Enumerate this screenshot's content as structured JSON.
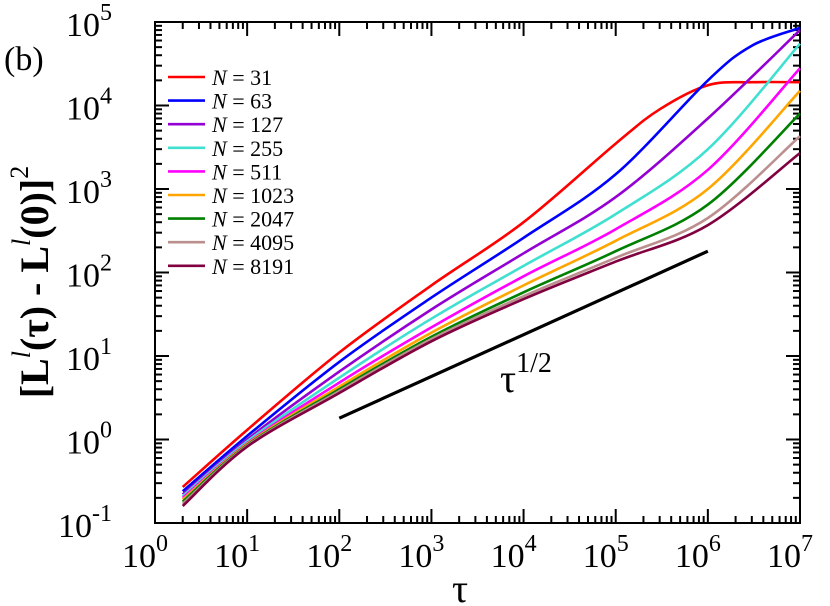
{
  "chart_data": {
    "type": "line",
    "panel_label": "(b)",
    "xscale": "log",
    "yscale": "log",
    "xlim": [
      1,
      10000000
    ],
    "ylim": [
      0.1,
      100000
    ],
    "xlabel": "τ",
    "ylabel": "[L^l(τ) - L^l(0)]^2",
    "xlabel_parts": {
      "base": "τ"
    },
    "ylabel_parts": {
      "open": "[",
      "L": "L",
      "sup": "l",
      "arg1": "(τ) - ",
      "arg2": "(0)]",
      "exp": "2"
    },
    "x_ticks": [
      {
        "value": 1,
        "base": "10",
        "exp": "0"
      },
      {
        "value": 10,
        "base": "10",
        "exp": "1"
      },
      {
        "value": 100,
        "base": "10",
        "exp": "2"
      },
      {
        "value": 1000,
        "base": "10",
        "exp": "3"
      },
      {
        "value": 10000,
        "base": "10",
        "exp": "4"
      },
      {
        "value": 100000,
        "base": "10",
        "exp": "5"
      },
      {
        "value": 1000000,
        "base": "10",
        "exp": "6"
      },
      {
        "value": 10000000,
        "base": "10",
        "exp": "7"
      }
    ],
    "y_ticks": [
      {
        "value": 0.1,
        "base": "10",
        "exp": "-1"
      },
      {
        "value": 1,
        "base": "10",
        "exp": "0"
      },
      {
        "value": 10,
        "base": "10",
        "exp": "1"
      },
      {
        "value": 100,
        "base": "10",
        "exp": "2"
      },
      {
        "value": 1000,
        "base": "10",
        "exp": "3"
      },
      {
        "value": 10000,
        "base": "10",
        "exp": "4"
      },
      {
        "value": 100000,
        "base": "10",
        "exp": "5"
      }
    ],
    "legend_position": "top-left",
    "series": [
      {
        "name": "N = 31",
        "color": "#ff0000",
        "x": [
          2,
          10,
          100,
          1000,
          10000,
          100000,
          300000,
          1000000,
          3000000,
          10000000
        ],
        "y": [
          0.27,
          1.3,
          11,
          70,
          400,
          3500,
          9000,
          17500,
          19000,
          19000
        ]
      },
      {
        "name": "N = 63",
        "color": "#0000ff",
        "x": [
          2,
          10,
          100,
          1000,
          10000,
          100000,
          1000000,
          3000000,
          10000000
        ],
        "y": [
          0.24,
          1.1,
          8.5,
          50,
          260,
          1500,
          20000,
          52000,
          85000
        ]
      },
      {
        "name": "N = 127",
        "color": "#9400d3",
        "x": [
          2,
          10,
          100,
          1000,
          10000,
          100000,
          1000000,
          10000000
        ],
        "y": [
          0.22,
          1.0,
          6.5,
          36,
          170,
          800,
          7000,
          80000
        ]
      },
      {
        "name": "N = 255",
        "color": "#40e0d0",
        "x": [
          2,
          10,
          100,
          1000,
          10000,
          100000,
          1000000,
          10000000
        ],
        "y": [
          0.21,
          0.95,
          5.5,
          28,
          120,
          500,
          3000,
          55000
        ]
      },
      {
        "name": "N = 511",
        "color": "#ff00ff",
        "x": [
          2,
          10,
          100,
          1000,
          10000,
          100000,
          1000000,
          10000000
        ],
        "y": [
          0.2,
          0.9,
          4.8,
          22,
          90,
          330,
          1700,
          28000
        ]
      },
      {
        "name": "N = 1023",
        "color": "#ffa500",
        "x": [
          2,
          10,
          100,
          1000,
          10000,
          100000,
          1000000,
          10000000
        ],
        "y": [
          0.19,
          0.88,
          4.3,
          19,
          70,
          240,
          1000,
          15000
        ]
      },
      {
        "name": "N = 2047",
        "color": "#008000",
        "x": [
          2,
          10,
          100,
          1000,
          10000,
          100000,
          1000000,
          10000000
        ],
        "y": [
          0.18,
          0.86,
          4.0,
          17,
          58,
          180,
          650,
          8000
        ]
      },
      {
        "name": "N = 4095",
        "color": "#bc8f8f",
        "x": [
          2,
          10,
          100,
          1000,
          10000,
          100000,
          1000000,
          10000000
        ],
        "y": [
          0.17,
          0.84,
          3.8,
          16,
          52,
          150,
          450,
          4300
        ]
      },
      {
        "name": "N = 8191",
        "color": "#800040",
        "x": [
          2,
          10,
          100,
          1000,
          10000,
          100000,
          1000000,
          10000000
        ],
        "y": [
          0.16,
          0.82,
          3.6,
          15,
          48,
          135,
          370,
          2700
        ]
      }
    ],
    "reference_line": {
      "label_base": "τ",
      "label_exp": "1/2",
      "color": "#000000",
      "x": [
        100,
        1000000
      ],
      "y": [
        1.8,
        180
      ]
    }
  }
}
